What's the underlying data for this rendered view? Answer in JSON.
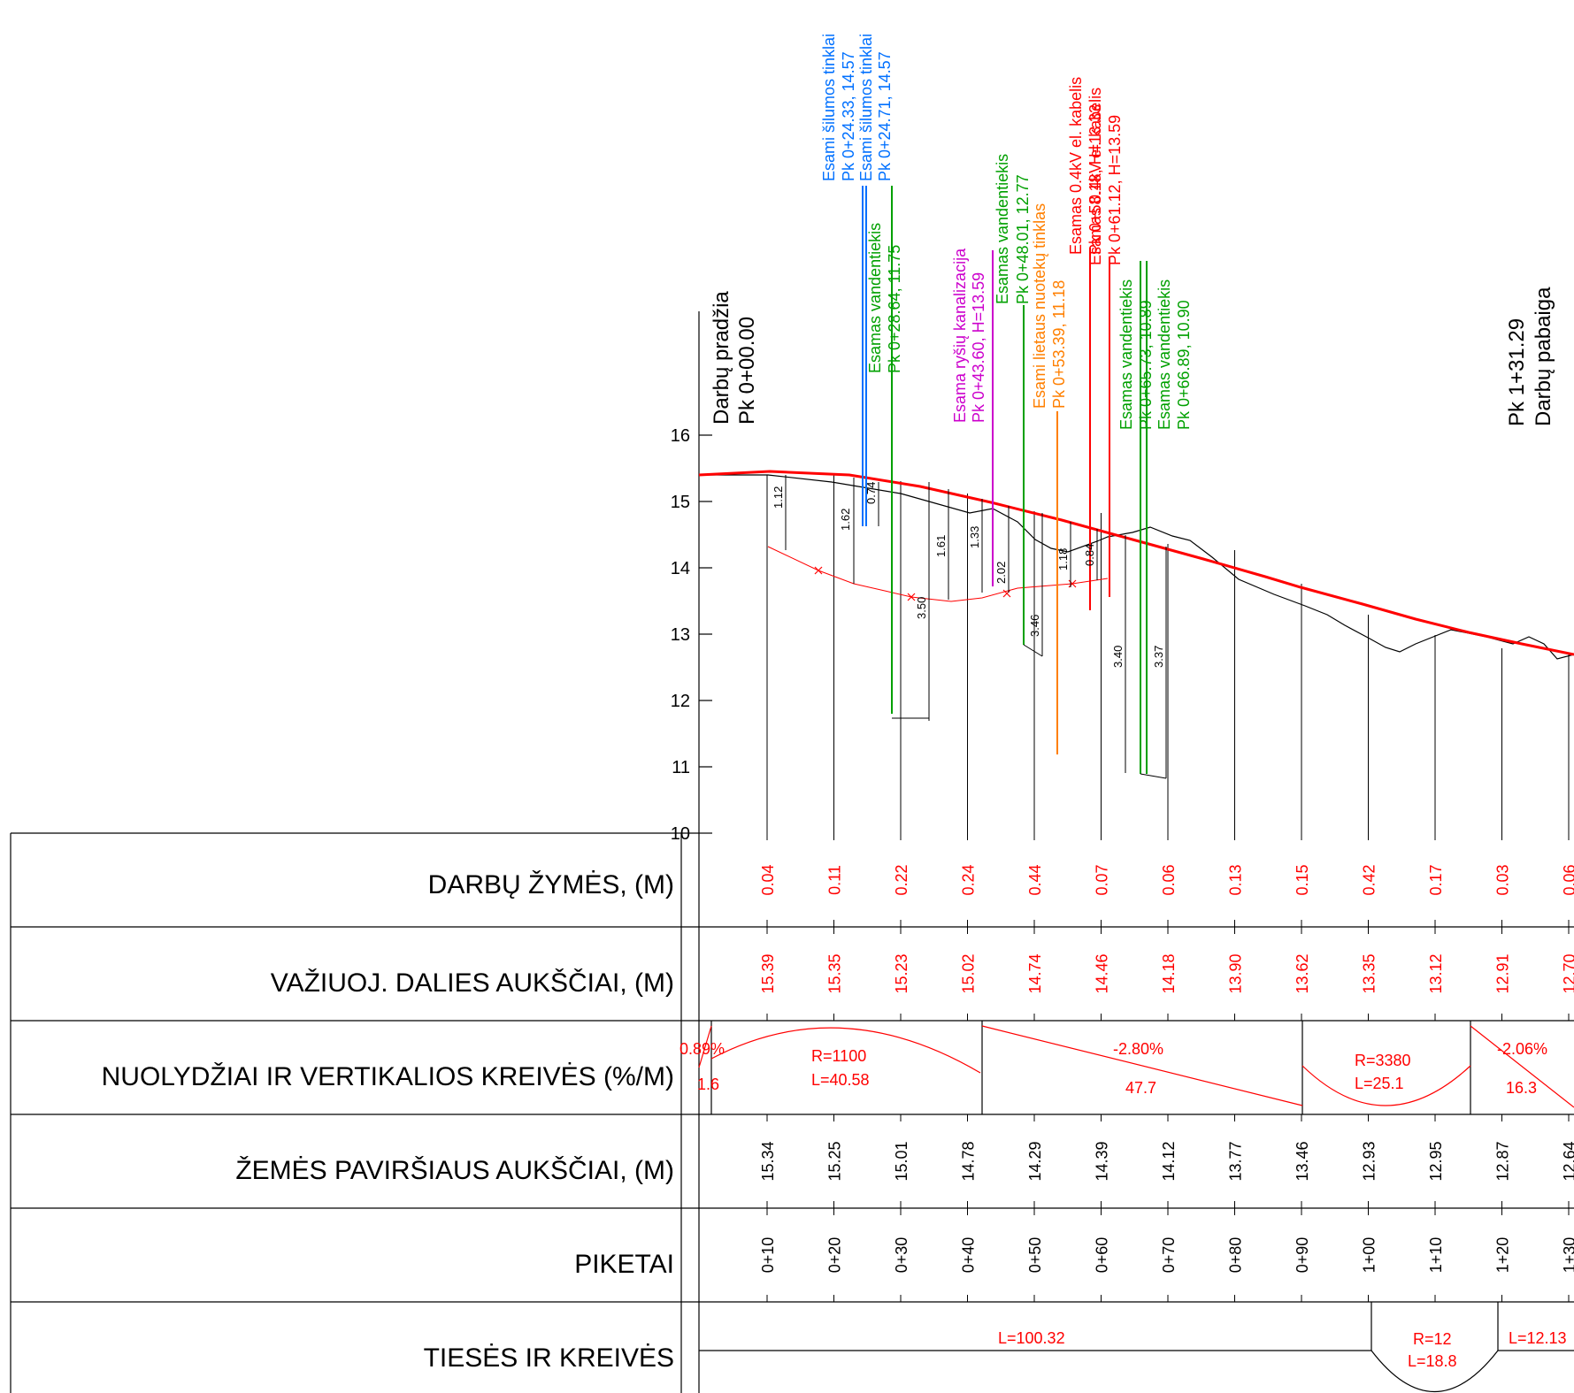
{
  "colors": {
    "design_line": "#ff0000",
    "ground_line": "#000000",
    "heat_network": "#0070ff",
    "water_supply": "#00a000",
    "telecom_sewer": "#cc00cc",
    "storm_sewer": "#ff7f00",
    "cable": "#ff0000"
  },
  "profile": {
    "y_ticks": [
      "16",
      "15",
      "14",
      "13",
      "12",
      "11",
      "10"
    ],
    "start_label": [
      "Darbų pradžia",
      "Pk 0+00.00"
    ],
    "end_label": [
      "Pk 1+31.29",
      "Darbų pabaiga"
    ],
    "utilities": [
      {
        "color": "heat_network",
        "lines": [
          "Esami šilumos tinklai",
          "Pk 0+24.33, 14.57"
        ]
      },
      {
        "color": "heat_network",
        "lines": [
          "Esami šilumos tinklai",
          "Pk 0+24.71, 14.57"
        ]
      },
      {
        "color": "water_supply",
        "lines": [
          "Esamas vandentiekis",
          "Pk 0+28.64, 11.75"
        ]
      },
      {
        "color": "telecom_sewer",
        "lines": [
          "Esama ryšių kanalizacija",
          "Pk 0+43.60, H=13.59"
        ]
      },
      {
        "color": "water_supply",
        "lines": [
          "Esamas vandentiekis",
          "Pk 0+48.01, 12.77"
        ]
      },
      {
        "color": "storm_sewer",
        "lines": [
          "Esami lietaus nuotekų tinklas",
          "Pk 0+53.39, 11.18"
        ]
      },
      {
        "color": "cable",
        "lines": [
          "Esamas 0.4kV el. kabelis",
          "Pk 0+58.18, H=13.33"
        ]
      },
      {
        "color": "cable",
        "lines": [
          "Esamas 0.4kV el. kabelis",
          "Pk 0+61.12, H=13.59"
        ]
      },
      {
        "color": "water_supply",
        "lines": [
          "Esamas vandentiekis",
          "Pk 0+65.73, 10.89"
        ]
      },
      {
        "color": "water_supply",
        "lines": [
          "Esamas vandentiekis",
          "Pk 0+66.89, 10.90"
        ]
      }
    ],
    "depth_dims": [
      "1.12",
      "1.62",
      "0.74",
      "3.50",
      "1.61",
      "1.33",
      "2.02",
      "3.46",
      "1.18",
      "0.84",
      "3.40",
      "3.37"
    ]
  },
  "table": {
    "rows": [
      {
        "label": "DARBŲ ŽYMĖS, (M)"
      },
      {
        "label": "VAŽIUOJ. DALIES AUKŠČIAI, (M)"
      },
      {
        "label": "NUOLYDŽIAI IR VERTIKALIOS KREIVĖS (%/M)"
      },
      {
        "label": "ŽEMĖS PAVIRŠIAUS AUKŠČIAI, (M)"
      },
      {
        "label": "PIKETAI"
      },
      {
        "label": "TIESĖS IR KREIVĖS"
      }
    ],
    "work_marks": [
      "0.04",
      "0.11",
      "0.22",
      "0.24",
      "0.44",
      "0.07",
      "0.06",
      "0.13",
      "0.15",
      "0.42",
      "0.17",
      "0.03",
      "0.06"
    ],
    "road_heights": [
      "15.39",
      "15.35",
      "15.23",
      "15.02",
      "14.74",
      "14.46",
      "14.18",
      "13.90",
      "13.62",
      "13.35",
      "13.12",
      "12.91",
      "12.70"
    ],
    "ground_heights": [
      "15.34",
      "15.25",
      "15.01",
      "14.78",
      "14.29",
      "14.39",
      "14.12",
      "13.77",
      "13.46",
      "12.93",
      "12.95",
      "12.87",
      "12.64"
    ],
    "pickets": [
      "0+10",
      "0+20",
      "0+30",
      "0+40",
      "0+50",
      "0+60",
      "0+70",
      "0+80",
      "0+90",
      "1+00",
      "1+10",
      "1+20",
      "1+30"
    ],
    "slopes": {
      "s1_pct": "0.89%",
      "s1_len": "1.6",
      "vc1_r": "R=1100",
      "vc1_l": "L=40.58",
      "s2_pct": "-2.80%",
      "s2_len": "47.7",
      "vc2_r": "R=3380",
      "vc2_l": "L=25.1",
      "s3_pct": "-2.06%",
      "s3_len": "16.3"
    },
    "alignment": {
      "straight1": "L=100.32",
      "curve_r": "R=12",
      "curve_l": "L=18.8",
      "straight2": "L=12.13"
    }
  }
}
